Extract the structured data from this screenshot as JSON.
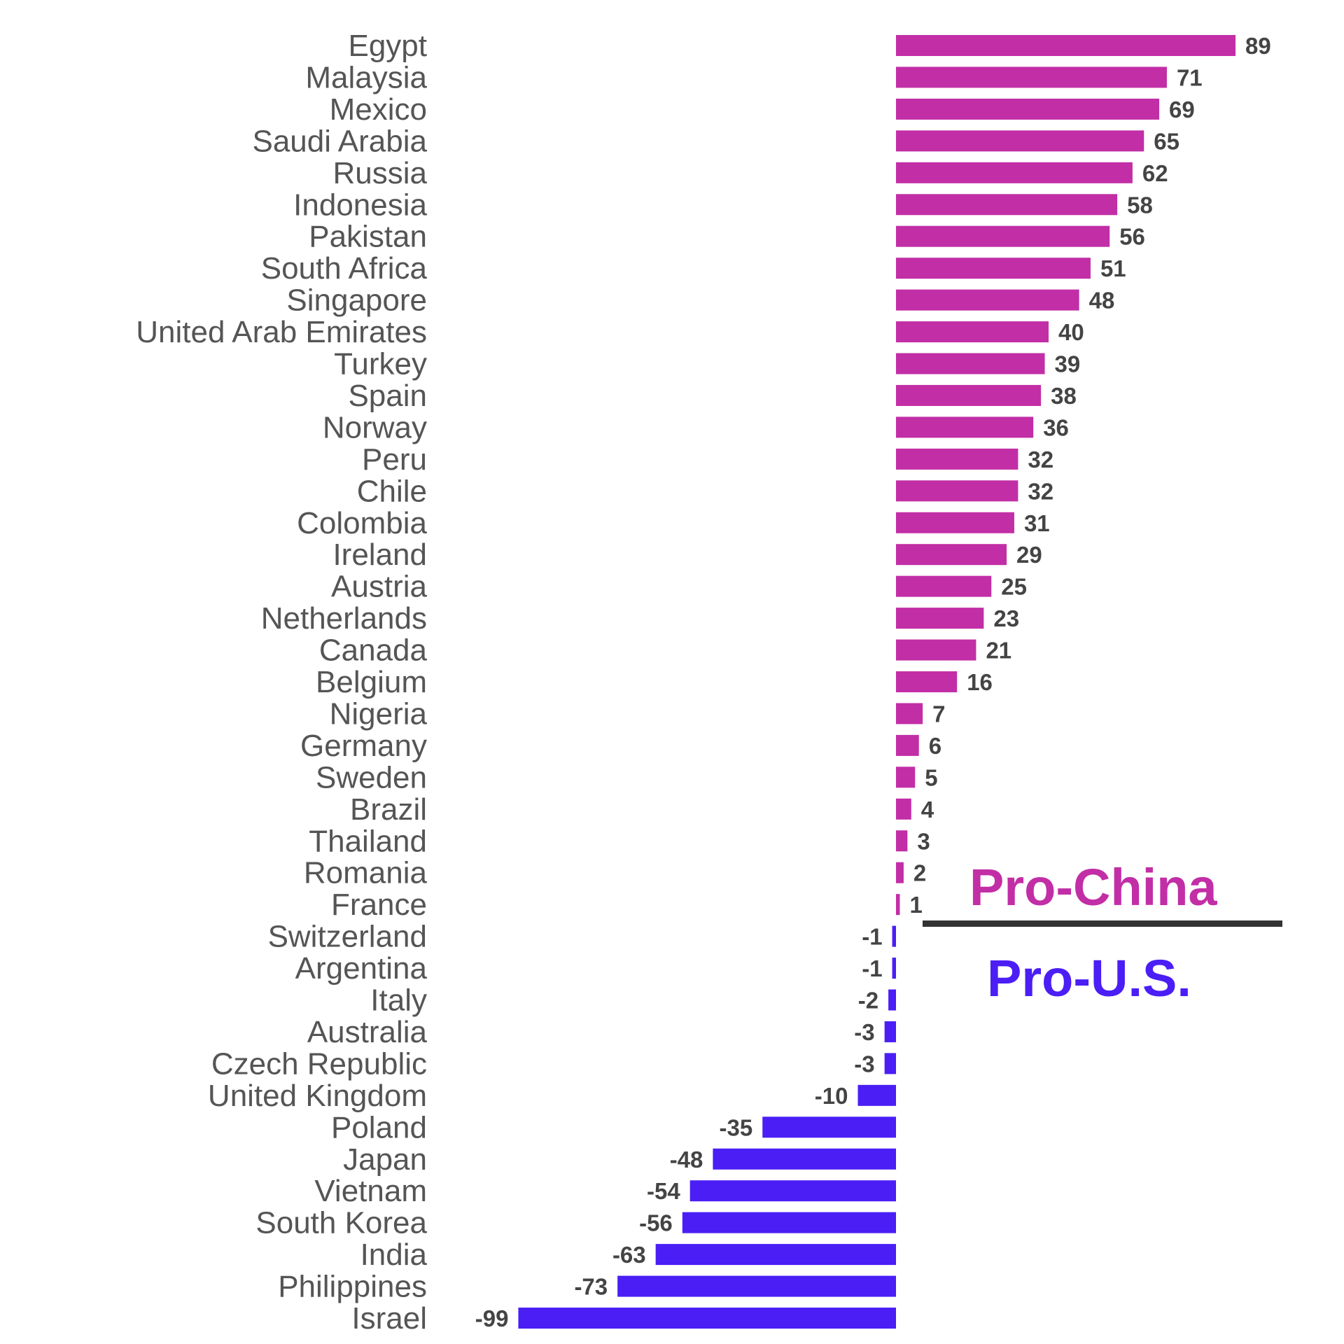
{
  "colors": {
    "positive": "#c22ea6",
    "negative": "#4a1ef5",
    "divider": "#333333"
  },
  "annotations": {
    "pro_china": "Pro-China",
    "pro_us": "Pro-U.S."
  },
  "chart_data": {
    "type": "bar",
    "orientation": "horizontal",
    "title": "",
    "xlabel": "",
    "ylabel": "",
    "grid": false,
    "xlim": [
      -99,
      89
    ],
    "categories": [
      "Egypt",
      "Malaysia",
      "Mexico",
      "Saudi Arabia",
      "Russia",
      "Indonesia",
      "Pakistan",
      "South Africa",
      "Singapore",
      "United Arab Emirates",
      "Turkey",
      "Spain",
      "Norway",
      "Peru",
      "Chile",
      "Colombia",
      "Ireland",
      "Austria",
      "Netherlands",
      "Canada",
      "Belgium",
      "Nigeria",
      "Germany",
      "Sweden",
      "Brazil",
      "Thailand",
      "Romania",
      "France",
      "Switzerland",
      "Argentina",
      "Italy",
      "Australia",
      "Czech Republic",
      "United Kingdom",
      "Poland",
      "Japan",
      "Vietnam",
      "South Korea",
      "India",
      "Philippines",
      "Israel"
    ],
    "values": [
      89,
      71,
      69,
      65,
      62,
      58,
      56,
      51,
      48,
      40,
      39,
      38,
      36,
      32,
      32,
      31,
      29,
      25,
      23,
      21,
      16,
      7,
      6,
      5,
      4,
      3,
      2,
      1,
      -1,
      -1,
      -2,
      -3,
      -3,
      -10,
      -35,
      -48,
      -54,
      -56,
      -63,
      -73,
      -99
    ]
  }
}
